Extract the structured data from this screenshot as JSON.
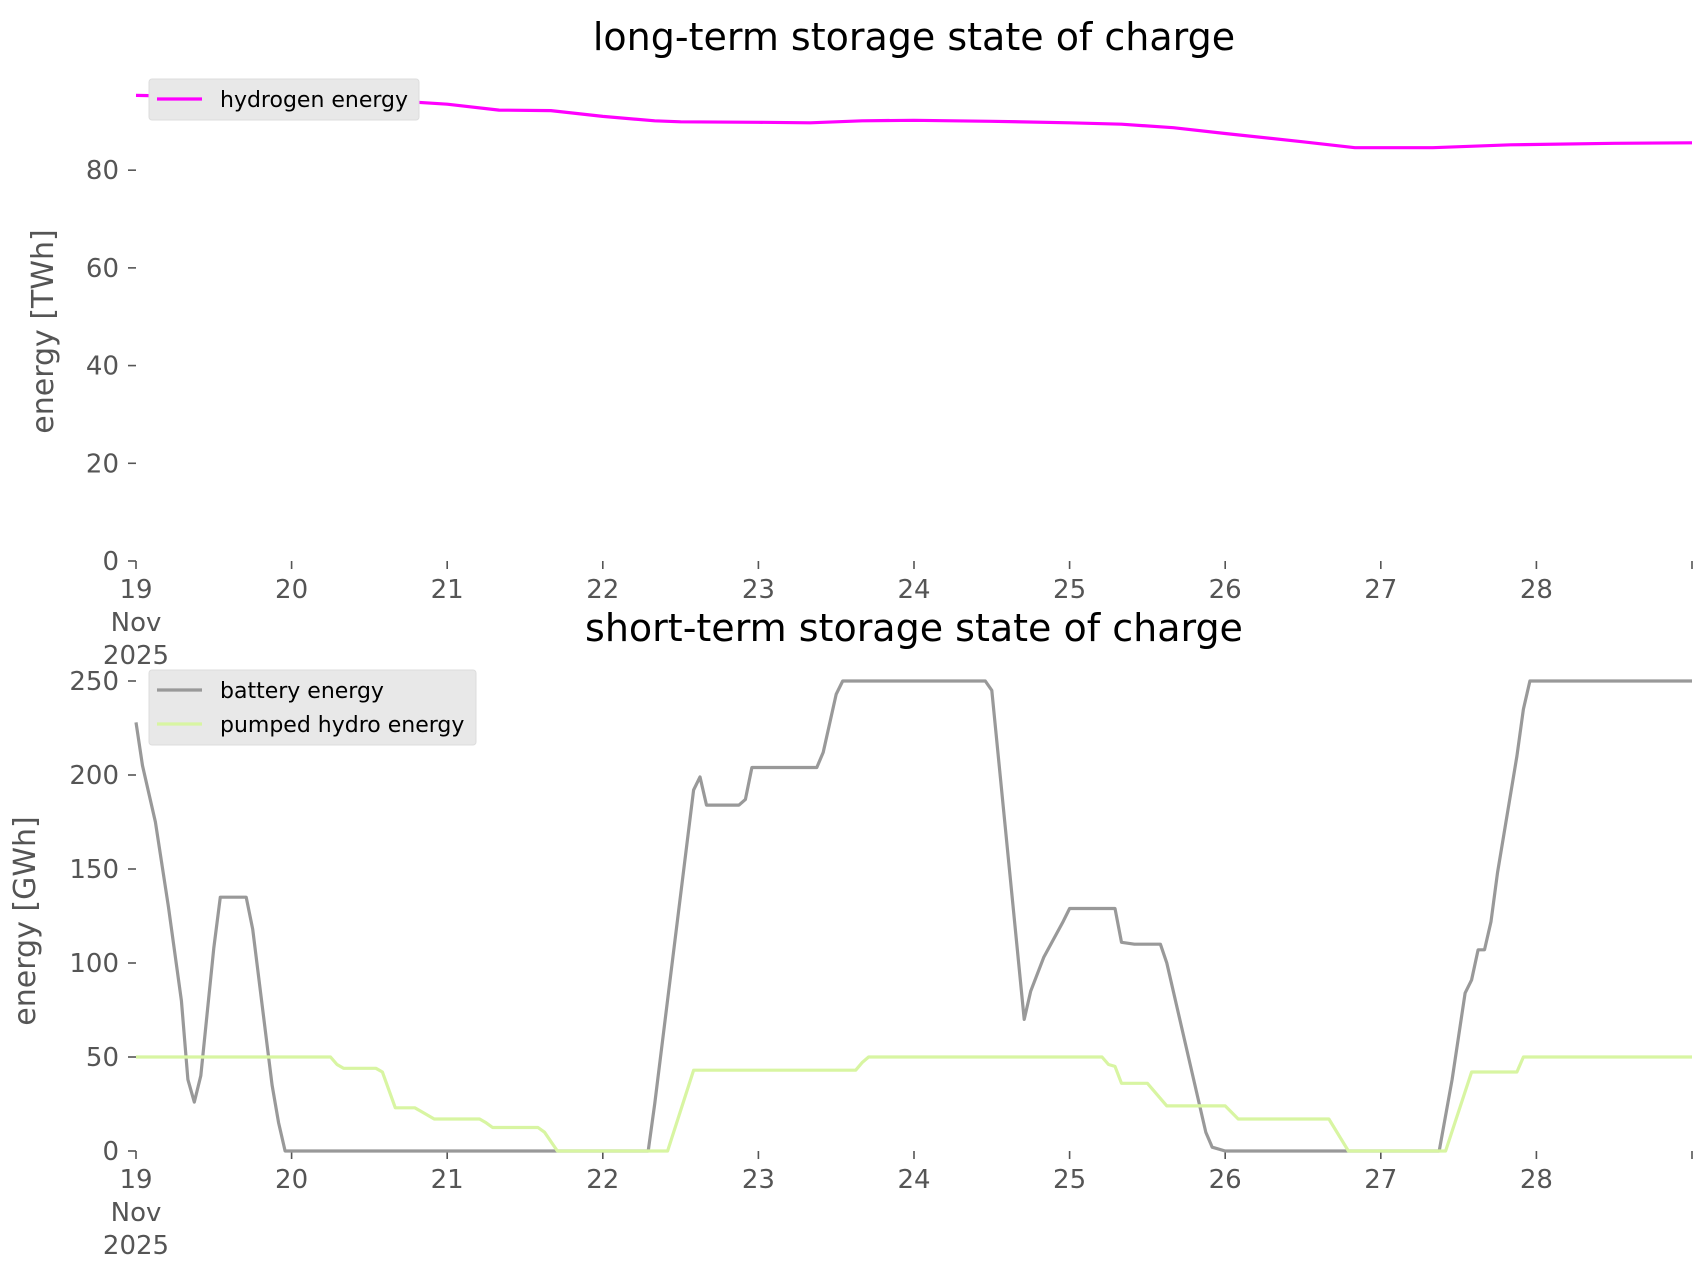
{
  "chart_data": [
    {
      "type": "line",
      "title": "long-term storage state of charge",
      "xlabel": "",
      "ylabel": "energy [TWh]",
      "xlim": [
        "2025-11-19T00:00",
        "2025-11-29T00:00"
      ],
      "ylim": [
        0,
        96
      ],
      "yticks": [
        0,
        20,
        40,
        60,
        80
      ],
      "ytick_labels": [
        "0",
        "20",
        "40",
        "60",
        "80"
      ],
      "xtick_labels": [
        [
          "19",
          "Nov",
          "2025"
        ],
        [
          "20"
        ],
        [
          "21"
        ],
        [
          "22"
        ],
        [
          "23"
        ],
        [
          "24"
        ],
        [
          "25"
        ],
        [
          "26"
        ],
        [
          "27"
        ],
        [
          "28"
        ],
        [
          ""
        ]
      ],
      "grid": false,
      "legend": "upper-left",
      "series": [
        {
          "name": "hydrogen energy",
          "color": "#ff00ff",
          "points": [
            [
              "2025-11-19T00:00",
              95.3
            ],
            [
              "2025-11-19T12:00",
              95.0
            ],
            [
              "2025-11-20T00:00",
              94.8
            ],
            [
              "2025-11-20T12:00",
              94.5
            ],
            [
              "2025-11-21T00:00",
              93.5
            ],
            [
              "2025-11-21T08:00",
              92.3
            ],
            [
              "2025-11-21T16:00",
              92.2
            ],
            [
              "2025-11-22T00:00",
              91.0
            ],
            [
              "2025-11-22T08:00",
              90.1
            ],
            [
              "2025-11-22T12:00",
              89.9
            ],
            [
              "2025-11-23T00:00",
              89.8
            ],
            [
              "2025-11-23T08:00",
              89.7
            ],
            [
              "2025-11-23T16:00",
              90.1
            ],
            [
              "2025-11-24T00:00",
              90.2
            ],
            [
              "2025-11-24T12:00",
              90.0
            ],
            [
              "2025-11-25T00:00",
              89.7
            ],
            [
              "2025-11-25T08:00",
              89.4
            ],
            [
              "2025-11-25T16:00",
              88.7
            ],
            [
              "2025-11-26T00:00",
              87.5
            ],
            [
              "2025-11-26T12:00",
              85.8
            ],
            [
              "2025-11-26T20:00",
              84.6
            ],
            [
              "2025-11-27T08:00",
              84.6
            ],
            [
              "2025-11-27T20:00",
              85.2
            ],
            [
              "2025-11-28T12:00",
              85.5
            ],
            [
              "2025-11-29T00:00",
              85.6
            ]
          ]
        }
      ]
    },
    {
      "type": "line",
      "title": "short-term storage state of charge",
      "xlabel": "",
      "ylabel": "energy [GWh]",
      "xlim": [
        "2025-11-19T00:00",
        "2025-11-29T00:00"
      ],
      "ylim": [
        0,
        250
      ],
      "yticks": [
        0,
        50,
        100,
        150,
        200,
        250
      ],
      "ytick_labels": [
        "0",
        "50",
        "100",
        "150",
        "200",
        "250"
      ],
      "xtick_labels": [
        [
          "19",
          "Nov",
          "2025"
        ],
        [
          "20"
        ],
        [
          "21"
        ],
        [
          "22"
        ],
        [
          "23"
        ],
        [
          "24"
        ],
        [
          "25"
        ],
        [
          "26"
        ],
        [
          "27"
        ],
        [
          "28"
        ],
        [
          ""
        ]
      ],
      "grid": false,
      "legend": "upper-left",
      "series": [
        {
          "name": "battery energy",
          "color": "#999999",
          "points": [
            [
              "2025-11-19T00:00",
              228
            ],
            [
              "2025-11-19T01:00",
              205
            ],
            [
              "2025-11-19T03:00",
              175
            ],
            [
              "2025-11-19T05:00",
              130
            ],
            [
              "2025-11-19T07:00",
              80
            ],
            [
              "2025-11-19T08:00",
              38
            ],
            [
              "2025-11-19T09:00",
              26
            ],
            [
              "2025-11-19T10:00",
              40
            ],
            [
              "2025-11-19T12:00",
              108
            ],
            [
              "2025-11-19T13:00",
              135
            ],
            [
              "2025-11-19T17:00",
              135
            ],
            [
              "2025-11-19T18:00",
              118
            ],
            [
              "2025-11-19T21:00",
              35
            ],
            [
              "2025-11-19T22:00",
              15
            ],
            [
              "2025-11-19T23:00",
              0
            ],
            [
              "2025-11-22T07:00",
              0
            ],
            [
              "2025-11-22T08:00",
              25
            ],
            [
              "2025-11-22T14:00",
              192
            ],
            [
              "2025-11-22T15:00",
              199
            ],
            [
              "2025-11-22T16:00",
              184
            ],
            [
              "2025-11-22T21:00",
              184
            ],
            [
              "2025-11-22T22:00",
              187
            ],
            [
              "2025-11-22T23:00",
              204
            ],
            [
              "2025-11-23T09:00",
              204
            ],
            [
              "2025-11-23T10:00",
              212
            ],
            [
              "2025-11-23T12:00",
              243
            ],
            [
              "2025-11-23T13:00",
              250
            ],
            [
              "2025-11-24T11:00",
              250
            ],
            [
              "2025-11-24T12:00",
              245
            ],
            [
              "2025-11-24T17:00",
              70
            ],
            [
              "2025-11-24T18:00",
              85
            ],
            [
              "2025-11-24T20:00",
              103
            ],
            [
              "2025-11-24T23:00",
              122
            ],
            [
              "2025-11-25T00:00",
              129
            ],
            [
              "2025-11-25T07:00",
              129
            ],
            [
              "2025-11-25T08:00",
              111
            ],
            [
              "2025-11-25T10:00",
              110
            ],
            [
              "2025-11-25T14:00",
              110
            ],
            [
              "2025-11-25T15:00",
              100
            ],
            [
              "2025-11-25T19:00",
              40
            ],
            [
              "2025-11-25T21:00",
              10
            ],
            [
              "2025-11-25T22:00",
              2
            ],
            [
              "2025-11-26T00:00",
              0
            ],
            [
              "2025-11-27T09:00",
              0
            ],
            [
              "2025-11-27T11:00",
              38
            ],
            [
              "2025-11-27T13:00",
              84
            ],
            [
              "2025-11-27T14:00",
              91
            ],
            [
              "2025-11-27T15:00",
              107
            ],
            [
              "2025-11-27T16:00",
              107
            ],
            [
              "2025-11-27T17:00",
              122
            ],
            [
              "2025-11-27T18:00",
              148
            ],
            [
              "2025-11-27T21:00",
              210
            ],
            [
              "2025-11-27T22:00",
              235
            ],
            [
              "2025-11-27T23:00",
              250
            ],
            [
              "2025-11-29T00:00",
              250
            ]
          ]
        },
        {
          "name": "pumped hydro energy",
          "color": "#d8f5a2",
          "points": [
            [
              "2025-11-19T00:00",
              50
            ],
            [
              "2025-11-20T06:00",
              50
            ],
            [
              "2025-11-20T07:00",
              46
            ],
            [
              "2025-11-20T08:00",
              44
            ],
            [
              "2025-11-20T13:00",
              44
            ],
            [
              "2025-11-20T14:00",
              42
            ],
            [
              "2025-11-20T16:00",
              23
            ],
            [
              "2025-11-20T19:00",
              23
            ],
            [
              "2025-11-20T20:00",
              21
            ],
            [
              "2025-11-20T22:00",
              17
            ],
            [
              "2025-11-21T05:00",
              17
            ],
            [
              "2025-11-21T06:00",
              15
            ],
            [
              "2025-11-21T07:00",
              12.5
            ],
            [
              "2025-11-21T14:00",
              12.5
            ],
            [
              "2025-11-21T15:00",
              10
            ],
            [
              "2025-11-21T17:00",
              0
            ],
            [
              "2025-11-22T10:00",
              0
            ],
            [
              "2025-11-22T14:00",
              43
            ],
            [
              "2025-11-23T15:00",
              43
            ],
            [
              "2025-11-23T16:00",
              47
            ],
            [
              "2025-11-23T17:00",
              50
            ],
            [
              "2025-11-25T05:00",
              50
            ],
            [
              "2025-11-25T06:00",
              46
            ],
            [
              "2025-11-25T07:00",
              45
            ],
            [
              "2025-11-25T08:00",
              36
            ],
            [
              "2025-11-25T12:00",
              36
            ],
            [
              "2025-11-25T15:00",
              24
            ],
            [
              "2025-11-26T00:00",
              24
            ],
            [
              "2025-11-26T02:00",
              17
            ],
            [
              "2025-11-26T16:00",
              17
            ],
            [
              "2025-11-26T19:00",
              0
            ],
            [
              "2025-11-27T10:00",
              0
            ],
            [
              "2025-11-27T14:00",
              42
            ],
            [
              "2025-11-27T21:00",
              42
            ],
            [
              "2025-11-27T22:00",
              50
            ],
            [
              "2025-11-29T00:00",
              50
            ]
          ]
        }
      ]
    }
  ]
}
